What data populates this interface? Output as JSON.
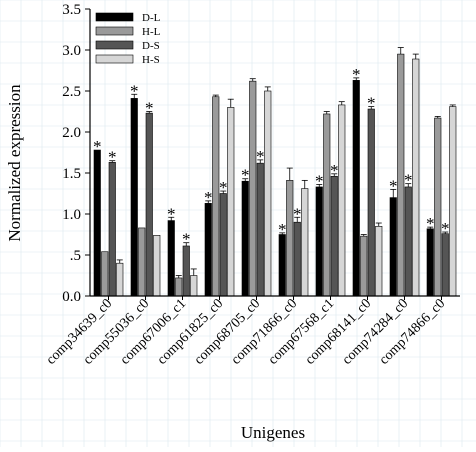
{
  "chart_data": {
    "type": "bar",
    "xlabel": "Unigenes",
    "ylabel": "Normalized expression",
    "ylim": [
      0,
      3.5
    ],
    "yticks": [
      0,
      0.5,
      1.0,
      1.5,
      2.0,
      2.5,
      3.0,
      3.5
    ],
    "ytick_labels": [
      "0.0",
      ".5",
      "1.0",
      "1.5",
      "2.0",
      "2.5",
      "3.0",
      "3.5"
    ],
    "grid": true,
    "legend_position": "top-left",
    "categories": [
      "comp34639_c0",
      "comp55036_c0",
      "comp67006_c1",
      "comp61825_c0",
      "comp68705_c0",
      "comp71866_c0",
      "comp67568_c1",
      "comp68141_c0",
      "comp74284_c0",
      "comp74866_c0"
    ],
    "series": [
      {
        "name": "D-L",
        "color": "#000000",
        "values": [
          1.78,
          2.41,
          0.92,
          1.13,
          1.4,
          0.75,
          1.33,
          2.63,
          1.2,
          0.82
        ],
        "errors": [
          0.0,
          0.05,
          0.04,
          0.03,
          0.03,
          0.02,
          0.03,
          0.03,
          0.1,
          0.02
        ],
        "significant": [
          true,
          true,
          true,
          true,
          true,
          true,
          true,
          true,
          true,
          true
        ]
      },
      {
        "name": "H-L",
        "color": "#9a9a9a",
        "values": [
          0.54,
          0.83,
          0.22,
          2.43,
          2.62,
          1.41,
          2.22,
          0.73,
          2.95,
          2.17
        ],
        "errors": [
          0.0,
          0.0,
          0.03,
          0.02,
          0.03,
          0.15,
          0.03,
          0.02,
          0.08,
          0.02
        ],
        "significant": [
          false,
          false,
          false,
          false,
          false,
          false,
          false,
          false,
          false,
          false
        ]
      },
      {
        "name": "D-S",
        "color": "#555555",
        "values": [
          1.63,
          2.23,
          0.61,
          1.25,
          1.62,
          0.9,
          1.46,
          2.28,
          1.33,
          0.76
        ],
        "errors": [
          0.02,
          0.02,
          0.04,
          0.03,
          0.04,
          0.06,
          0.03,
          0.03,
          0.04,
          0.02
        ],
        "significant": [
          true,
          true,
          true,
          true,
          true,
          true,
          true,
          true,
          true,
          true
        ]
      },
      {
        "name": "H-S",
        "color": "#d6d6d6",
        "values": [
          0.4,
          0.74,
          0.25,
          2.3,
          2.5,
          1.31,
          2.33,
          0.85,
          2.89,
          2.31
        ],
        "errors": [
          0.04,
          0.0,
          0.08,
          0.1,
          0.05,
          0.1,
          0.04,
          0.04,
          0.06,
          0.02
        ],
        "significant": [
          false,
          false,
          false,
          false,
          false,
          false,
          false,
          false,
          false,
          false
        ]
      }
    ]
  }
}
